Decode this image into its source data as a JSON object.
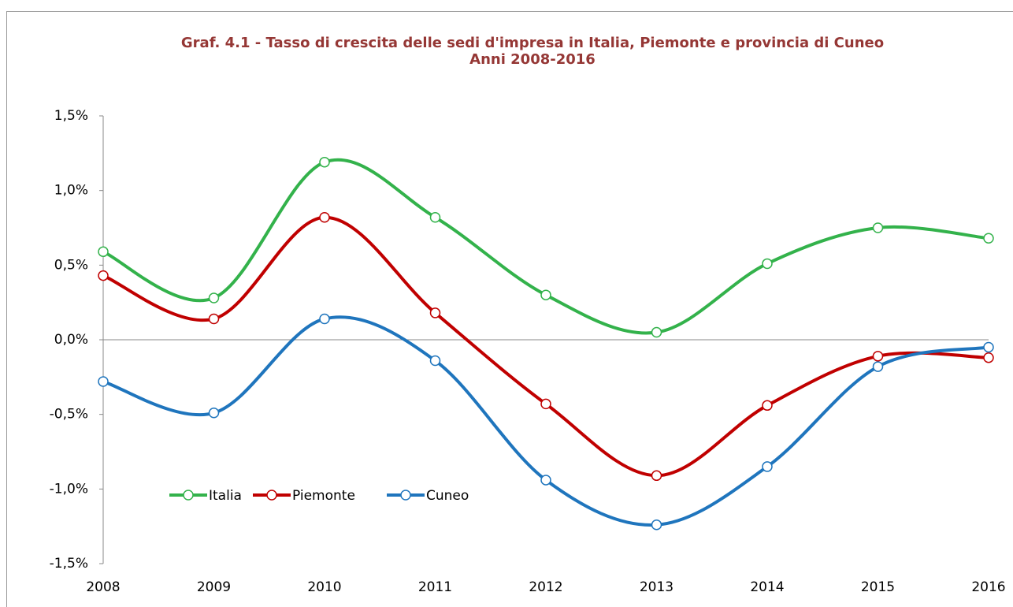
{
  "chart_data": {
    "type": "line",
    "title": "Graf. 4.1 - Tasso di crescita delle sedi d'impresa in Italia, Piemonte e provincia di Cuneo",
    "subtitle": "Anni 2008-2016",
    "x": [
      2008,
      2009,
      2010,
      2011,
      2012,
      2013,
      2014,
      2015,
      2016
    ],
    "xlim": [
      2008,
      2016
    ],
    "xticks": [
      2008,
      2009,
      2010,
      2011,
      2012,
      2013,
      2014,
      2015,
      2016
    ],
    "ylim": [
      -1.5,
      1.5
    ],
    "yticks": [
      {
        "value": -1.5,
        "label": "-1,5%"
      },
      {
        "value": -1.0,
        "label": "-1,0%"
      },
      {
        "value": -0.5,
        "label": "-0,5%"
      },
      {
        "value": 0,
        "label": "0,0%"
      },
      {
        "value": 0.5,
        "label": "0,5%"
      },
      {
        "value": 1.0,
        "label": "1,0%"
      },
      {
        "value": 1.5,
        "label": "1,5%"
      }
    ],
    "grid": false,
    "smooth": true,
    "legend": "lower left",
    "series": [
      {
        "name": "Italia",
        "color": "#33b24b",
        "values": [
          0.59,
          0.28,
          1.19,
          0.82,
          0.3,
          0.05,
          0.51,
          0.75,
          0.68
        ]
      },
      {
        "name": "Piemonte",
        "color": "#c00000",
        "values": [
          0.43,
          0.14,
          0.82,
          0.18,
          -0.43,
          -0.91,
          -0.44,
          -0.11,
          -0.12
        ]
      },
      {
        "name": "Cuneo",
        "color": "#1f75bd",
        "values": [
          -0.28,
          -0.49,
          0.14,
          -0.14,
          -0.94,
          -1.24,
          -0.85,
          -0.18,
          -0.05
        ]
      }
    ]
  }
}
